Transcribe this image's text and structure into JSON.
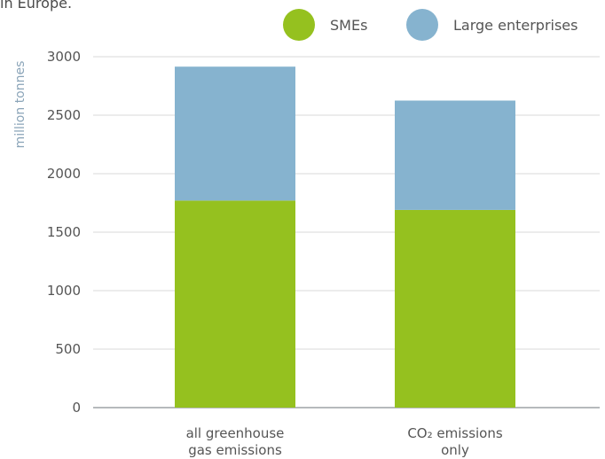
{
  "caption_fragment": "in Europe.",
  "chart_data": {
    "type": "bar",
    "stacked": true,
    "ylabel": "million tonnes",
    "ylim": [
      0,
      3000
    ],
    "yticks": [
      0,
      500,
      1000,
      1500,
      2000,
      2500,
      3000
    ],
    "categories": [
      [
        "all greenhouse",
        "gas emissions"
      ],
      [
        "CO₂ emissions",
        "only"
      ]
    ],
    "series": [
      {
        "name": "SMEs",
        "color": "#95c11f",
        "values": [
          1770,
          1690
        ]
      },
      {
        "name": "Large enterprises",
        "color": "#86b3cf",
        "values": [
          1145,
          935
        ]
      }
    ],
    "legend_position": "top-right",
    "gridlines": true
  }
}
